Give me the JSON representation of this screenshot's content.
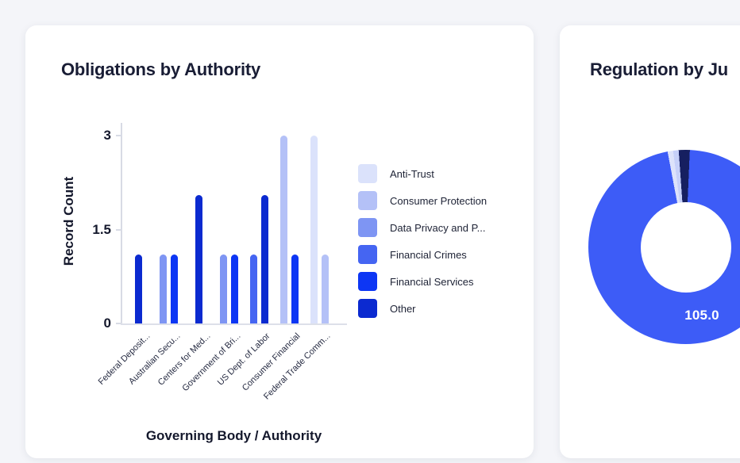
{
  "page": {
    "background": "#f4f5f9",
    "card_background": "#ffffff"
  },
  "cards": {
    "obligations": {
      "title": "Obligations by Authority",
      "y_axis_label": "Record Count",
      "x_axis_label": "Governing Body / Authority",
      "legend": [
        {
          "label": "Anti-Trust",
          "color": "#dbe2fb"
        },
        {
          "label": "Consumer Protection",
          "color": "#b4c1f7"
        },
        {
          "label": "Data Privacy and P...",
          "color": "#7e95f3"
        },
        {
          "label": "Financial Crimes",
          "color": "#4565f2"
        },
        {
          "label": "Financial Services",
          "color": "#0d36f4"
        },
        {
          "label": "Other",
          "color": "#0b2ad0"
        }
      ],
      "chart_data": {
        "type": "bar",
        "title": "Obligations by Authority",
        "xlabel": "Governing Body / Authority",
        "ylabel": "Record Count",
        "ylim": [
          0,
          3
        ],
        "yticks": [
          0,
          1.5,
          3
        ],
        "grid": false,
        "legend_position": "right",
        "categories": [
          "Federal Deposit...",
          "Australian Secu...",
          "Centers for Med...",
          "Government of Bri...",
          "US Dept. of Labor",
          "Consumer Financial",
          "Federal Trade Comm..."
        ],
        "series": [
          {
            "name": "Anti-Trust",
            "values": [
              0,
              0,
              0,
              0,
              0,
              0,
              3
            ]
          },
          {
            "name": "Consumer Protection",
            "values": [
              0,
              0,
              0,
              0,
              0,
              3,
              1
            ]
          },
          {
            "name": "Data Privacy and P...",
            "values": [
              0,
              1,
              0,
              1,
              0,
              0,
              0
            ]
          },
          {
            "name": "Financial Crimes",
            "values": [
              0,
              0,
              0,
              0,
              1,
              0,
              0
            ]
          },
          {
            "name": "Financial Services",
            "values": [
              0,
              1,
              0,
              1,
              0,
              1,
              0
            ]
          },
          {
            "name": "Other",
            "values": [
              1,
              0,
              2,
              0,
              2,
              0,
              0
            ]
          }
        ]
      }
    },
    "regulation": {
      "title": "Regulation by Ju",
      "chart_data": {
        "type": "pie",
        "donut": true,
        "start_angle_deg": 2.5,
        "segments": [
          {
            "value": 105.0,
            "label": "105.0",
            "color": "#3d5cf7"
          },
          {
            "value": 1,
            "label": "",
            "color": "#dde3fb"
          },
          {
            "value": 1,
            "label": "",
            "color": "#c6d0f9"
          },
          {
            "value": 2,
            "label": "",
            "color": "#161f60"
          }
        ]
      }
    }
  }
}
